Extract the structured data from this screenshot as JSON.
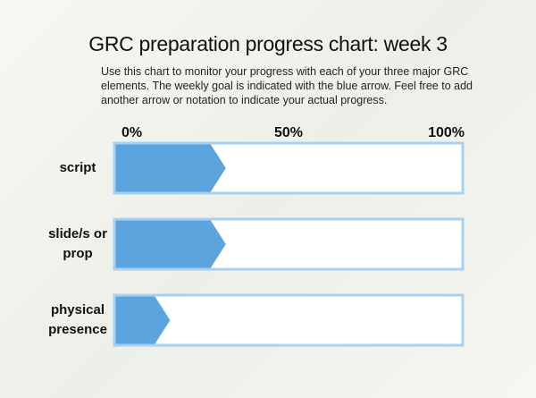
{
  "chart_data": {
    "type": "bar",
    "title": "GRC preparation progress chart: week 3",
    "subtitle": "Use this chart to monitor your progress with each of your three major GRC elements. The weekly goal is indicated with the blue arrow. Feel free to add another arrow or notation to indicate your actual progress.",
    "categories": [
      "script",
      "slide/s or prop",
      "physical presence"
    ],
    "values": [
      32,
      32,
      16
    ],
    "color": "#5ba4dd",
    "xlim": [
      0,
      100
    ],
    "xticks": [
      {
        "value": 0,
        "label": "0%"
      },
      {
        "value": 50,
        "label": "50%"
      },
      {
        "value": 100,
        "label": "100%"
      }
    ]
  }
}
